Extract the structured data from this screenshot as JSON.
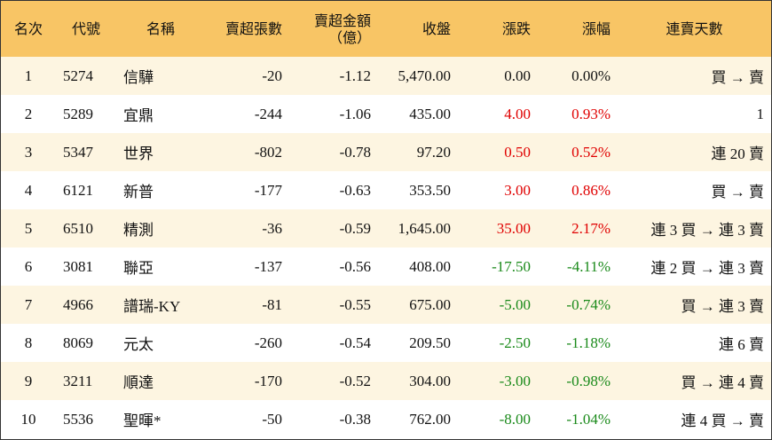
{
  "table": {
    "header": [
      "名次",
      "代號",
      "名稱",
      "賣超張數",
      "賣超金額\n（億）",
      "收盤",
      "漲跌",
      "漲幅",
      "連賣天數"
    ],
    "rows": [
      [
        "1",
        "5274",
        "信驊",
        "-20",
        "-1.12",
        "5,470.00",
        "0.00",
        "0.00%",
        "買 → 賣"
      ],
      [
        "2",
        "5289",
        "宜鼎",
        "-244",
        "-1.06",
        "435.00",
        "4.00",
        "0.93%",
        "1"
      ],
      [
        "3",
        "5347",
        "世界",
        "-802",
        "-0.78",
        "97.20",
        "0.50",
        "0.52%",
        "連 20 賣"
      ],
      [
        "4",
        "6121",
        "新普",
        "-177",
        "-0.63",
        "353.50",
        "3.00",
        "0.86%",
        "買 → 賣"
      ],
      [
        "5",
        "6510",
        "精測",
        "-36",
        "-0.59",
        "1,645.00",
        "35.00",
        "2.17%",
        "連 3 買 → 連 3 賣"
      ],
      [
        "6",
        "3081",
        "聯亞",
        "-137",
        "-0.56",
        "408.00",
        "-17.50",
        "-4.11%",
        "連 2 買 → 連 3 賣"
      ],
      [
        "7",
        "4966",
        "譜瑞-KY",
        "-81",
        "-0.55",
        "675.00",
        "-5.00",
        "-0.74%",
        "買 → 連 3 賣"
      ],
      [
        "8",
        "8069",
        "元太",
        "-260",
        "-0.54",
        "209.50",
        "-2.50",
        "-1.18%",
        "連 6 賣"
      ],
      [
        "9",
        "3211",
        "順達",
        "-170",
        "-0.52",
        "304.00",
        "-3.00",
        "-0.98%",
        "買 → 連 4 賣"
      ],
      [
        "10",
        "5536",
        "聖暉*",
        "-50",
        "-0.38",
        "762.00",
        "-8.00",
        "-1.04%",
        "連 4 買 → 賣"
      ]
    ]
  }
}
